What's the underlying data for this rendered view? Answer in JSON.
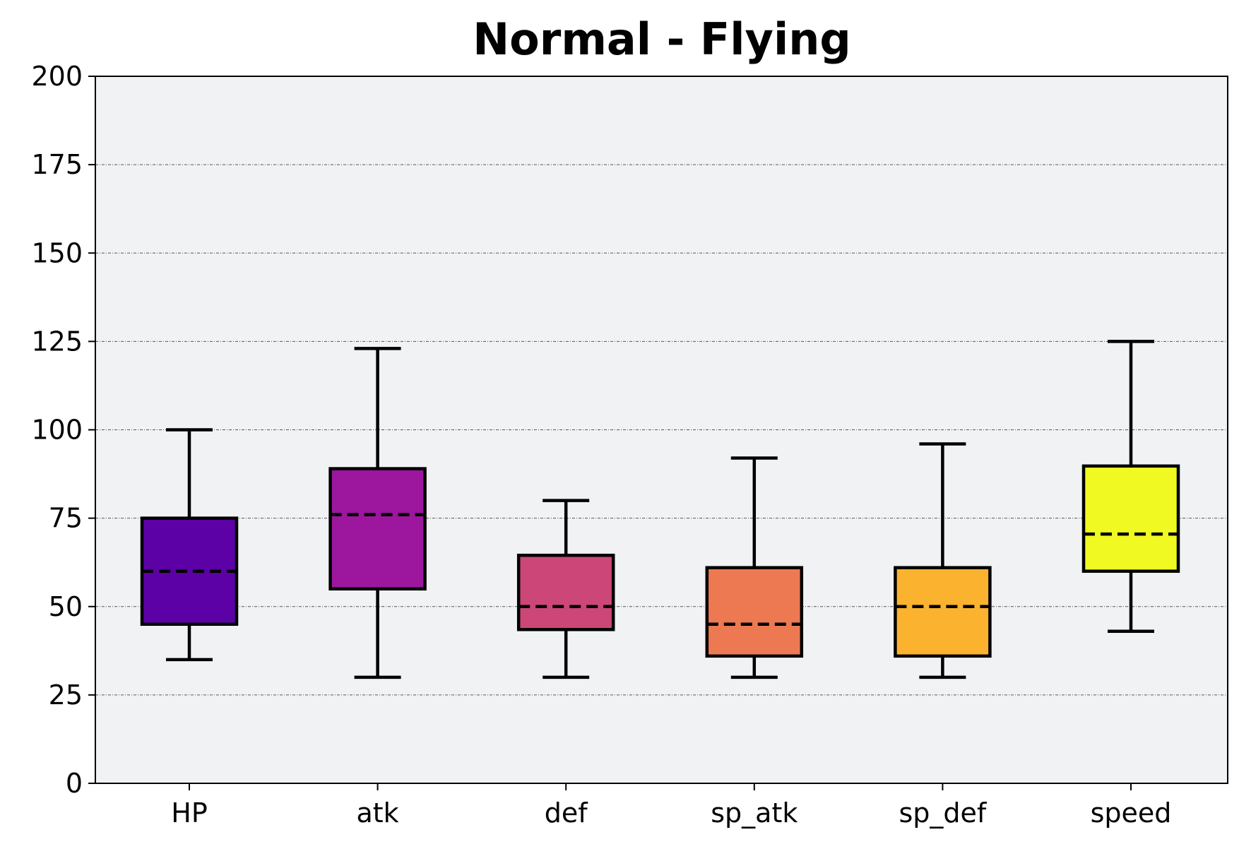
{
  "chart_data": {
    "type": "box",
    "title": "Normal - Flying",
    "xlabel": "",
    "ylabel": "",
    "ylim": [
      0,
      200
    ],
    "yticks": [
      0,
      25,
      50,
      75,
      100,
      125,
      150,
      175,
      200
    ],
    "grid": "horizontal dashed",
    "background_color": "#f1f2f4",
    "categories": [
      "HP",
      "atk",
      "def",
      "sp_atk",
      "sp_def",
      "speed"
    ],
    "colors": [
      "#5c01a5",
      "#9c179e",
      "#cc4778",
      "#ed7953",
      "#fbb32f",
      "#f0f921"
    ],
    "boxes": [
      {
        "name": "HP",
        "whisker_low": 35,
        "q1": 45,
        "median": 60,
        "q3": 75,
        "whisker_high": 100
      },
      {
        "name": "atk",
        "whisker_low": 30,
        "q1": 55,
        "median": 76,
        "q3": 89,
        "whisker_high": 123
      },
      {
        "name": "def",
        "whisker_low": 30,
        "q1": 43.5,
        "median": 50,
        "q3": 64.5,
        "whisker_high": 80
      },
      {
        "name": "sp_atk",
        "whisker_low": 30,
        "q1": 36,
        "median": 45,
        "q3": 61,
        "whisker_high": 92
      },
      {
        "name": "sp_def",
        "whisker_low": 30,
        "q1": 36,
        "median": 50,
        "q3": 61,
        "whisker_high": 96
      },
      {
        "name": "speed",
        "whisker_low": 43,
        "q1": 60,
        "median": 70.5,
        "q3": 89.75,
        "whisker_high": 125
      }
    ]
  }
}
